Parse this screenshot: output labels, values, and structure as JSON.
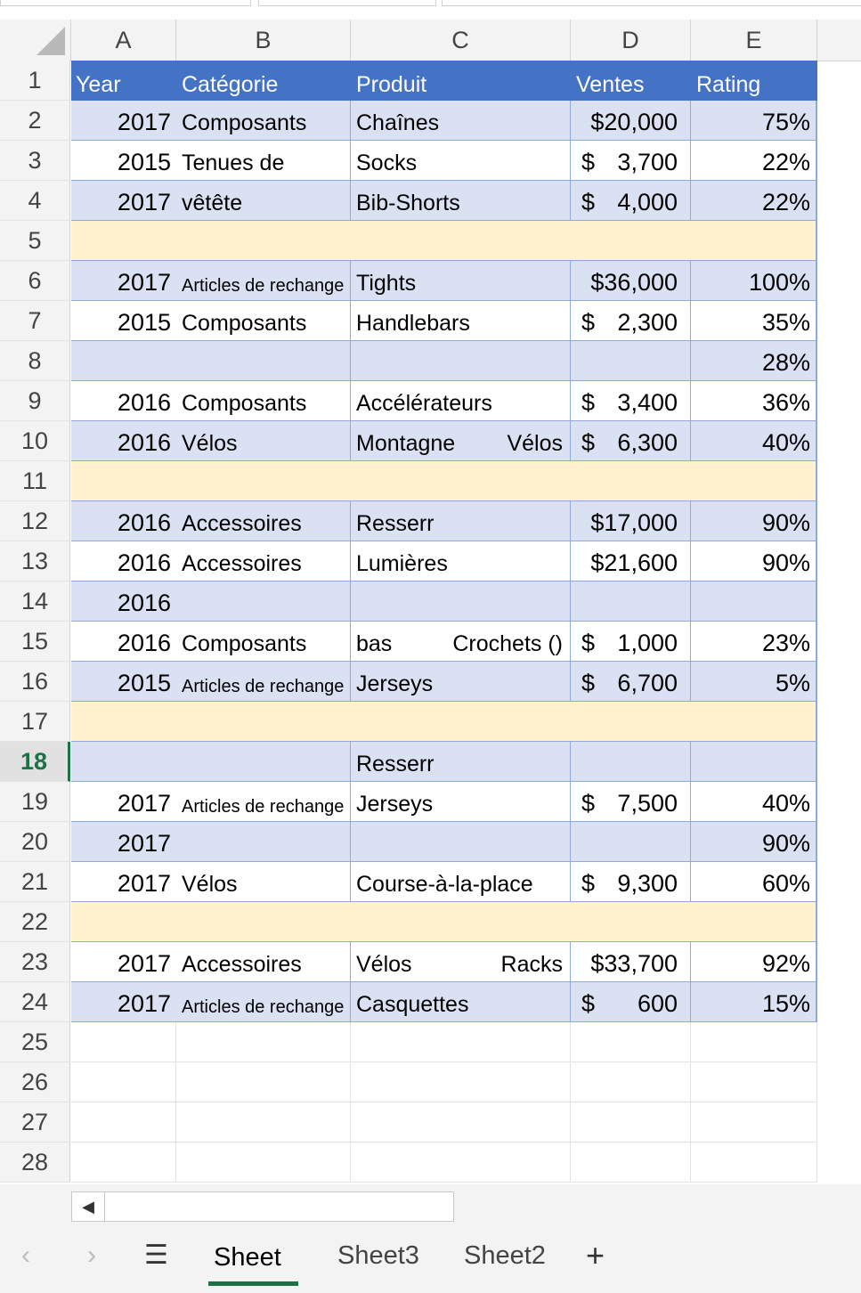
{
  "columns": [
    "A",
    "B",
    "C",
    "D",
    "E"
  ],
  "rows": [
    "1",
    "2",
    "3",
    "4",
    "5",
    "6",
    "7",
    "8",
    "9",
    "10",
    "11",
    "12",
    "13",
    "14",
    "15",
    "16",
    "17",
    "18",
    "19",
    "20",
    "21",
    "22",
    "23",
    "24",
    "25",
    "26",
    "27",
    "28"
  ],
  "selected_row": "18",
  "header": {
    "year": "Year",
    "category": "Catégorie",
    "product": "Produit",
    "sales": "Ventes",
    "rating": "Rating"
  },
  "data_rows": [
    {
      "year": "2017",
      "category": "Composants",
      "product": "Chaînes",
      "product2": "",
      "dollar": "$20,000",
      "amt": "",
      "rating": "75%",
      "cat_small": false
    },
    {
      "year": "2015",
      "category": "Tenues de",
      "product": "Socks",
      "product2": "",
      "dollar": "$",
      "amt": "3,700",
      "rating": "22%",
      "cat_small": false
    },
    {
      "year": "2017",
      "category": "vêtête",
      "product": "Bib-Shorts",
      "product2": "",
      "dollar": "$",
      "amt": "4,000",
      "rating": "22%",
      "cat_small": false
    },
    {
      "year": "",
      "category": "",
      "product": "",
      "product2": "",
      "dollar": "",
      "amt": "",
      "rating": "",
      "cat_small": false
    },
    {
      "year": "2017",
      "category": "Articles de rechange",
      "product": "Tights",
      "product2": "",
      "dollar": "$36,000",
      "amt": "",
      "rating": "100%",
      "cat_small": true
    },
    {
      "year": "2015",
      "category": "Composants",
      "product": "Handlebars",
      "product2": "",
      "dollar": "$",
      "amt": "2,300",
      "rating": "35%",
      "cat_small": false
    },
    {
      "year": "",
      "category": "",
      "product": "",
      "product2": "",
      "dollar": "",
      "amt": "",
      "rating": "28%",
      "cat_small": false
    },
    {
      "year": "2016",
      "category": "Composants",
      "product": "Accélérateurs",
      "product2": "",
      "dollar": "$",
      "amt": "3,400",
      "rating": "36%",
      "cat_small": false
    },
    {
      "year": "2016",
      "category": "Vélos",
      "product": "Montagne",
      "product2": "Vélos",
      "dollar": "$",
      "amt": "6,300",
      "rating": "40%",
      "cat_small": false
    },
    {
      "year": "",
      "category": "",
      "product": "",
      "product2": "",
      "dollar": "",
      "amt": "",
      "rating": "",
      "cat_small": false
    },
    {
      "year": "2016",
      "category": "Accessoires",
      "product": "Resserr",
      "product2": "",
      "dollar": "$17,000",
      "amt": "",
      "rating": "90%",
      "cat_small": false
    },
    {
      "year": "2016",
      "category": "Accessoires",
      "product": "Lumières",
      "product2": "",
      "dollar": "$21,600",
      "amt": "",
      "rating": "90%",
      "cat_small": false
    },
    {
      "year": "2016",
      "category": "",
      "product": "",
      "product2": "",
      "dollar": "",
      "amt": "",
      "rating": "",
      "cat_small": false
    },
    {
      "year": "2016",
      "category": "Composants",
      "product": "bas",
      "product2": "Crochets ()",
      "dollar": "$",
      "amt": "1,000",
      "rating": "23%",
      "cat_small": false
    },
    {
      "year": "2015",
      "category": "Articles de rechange",
      "product": "Jerseys",
      "product2": "",
      "dollar": "$",
      "amt": "6,700",
      "rating": "5%",
      "cat_small": true
    },
    {
      "year": "",
      "category": "",
      "product": "",
      "product2": "",
      "dollar": "",
      "amt": "",
      "rating": "",
      "cat_small": false
    },
    {
      "year": "",
      "category": "",
      "product": "Resserr",
      "product2": "",
      "dollar": "",
      "amt": "",
      "rating": "",
      "cat_small": false
    },
    {
      "year": "2017",
      "category": "Articles de rechange",
      "product": "Jerseys",
      "product2": "",
      "dollar": "$",
      "amt": "7,500",
      "rating": "40%",
      "cat_small": true
    },
    {
      "year": "2017",
      "category": "",
      "product": "",
      "product2": "",
      "dollar": "",
      "amt": "",
      "rating": "90%",
      "cat_small": false
    },
    {
      "year": "2017",
      "category": "Vélos",
      "product": "Course-à-la-place",
      "product2": "",
      "dollar": "$",
      "amt": "9,300",
      "rating": "60%",
      "cat_small": false
    },
    {
      "year": "",
      "category": "",
      "product": "",
      "product2": "",
      "dollar": "",
      "amt": "",
      "rating": "",
      "cat_small": false
    },
    {
      "year": "2017",
      "category": "Accessoires",
      "product": "Vélos",
      "product2": "Racks",
      "dollar": "$33,700",
      "amt": "",
      "rating": "92%",
      "cat_small": false
    },
    {
      "year": "2017",
      "category": "Articles de rechange",
      "product": "Casquettes",
      "product2": "",
      "dollar": "$",
      "amt": "600",
      "rating": "15%",
      "cat_small": true
    }
  ],
  "row_styles": [
    "band",
    "white",
    "band",
    "cream",
    "band",
    "white",
    "band",
    "white",
    "band",
    "cream",
    "band",
    "white",
    "band",
    "white",
    "band",
    "cream",
    "band",
    "white",
    "band",
    "white",
    "cream",
    "white",
    "band"
  ],
  "scroll_left_icon": "scroll-left-arrow-icon",
  "tabs": {
    "prev_icon": "chevron-left-icon",
    "next_icon": "chevron-right-icon",
    "menu_icon": "hamburger-menu-icon",
    "sheets": [
      "Sheet",
      "Sheet3",
      "Sheet2"
    ],
    "active": "Sheet",
    "add_icon": "plus-icon"
  },
  "colors": {
    "header_blue": "#4472c4",
    "band_blue": "#d9e1f2",
    "cream": "#fff2cc",
    "accent_green": "#1e7145"
  }
}
